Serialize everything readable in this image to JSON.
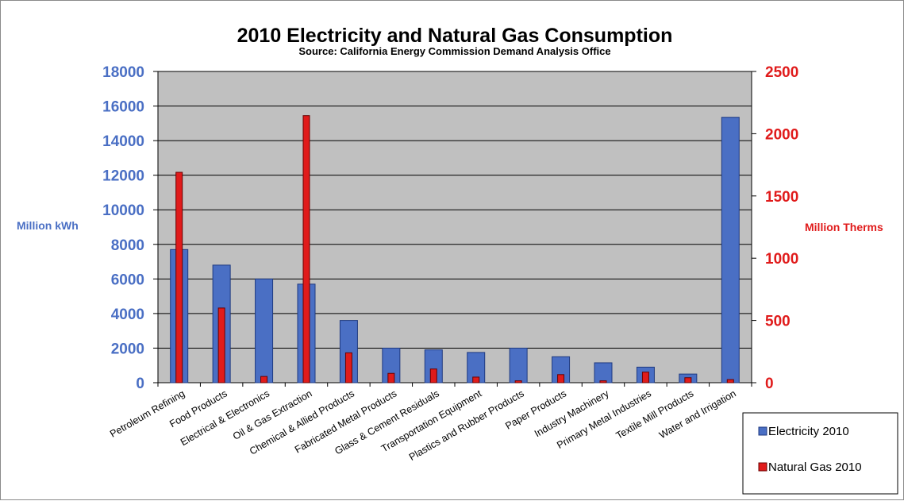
{
  "chart_data": {
    "type": "bar",
    "title": "2010 Electricity and Natural Gas Consumption",
    "subtitle": "Source: California Energy Commission Demand Analysis Office",
    "categories": [
      "Petroleum Refining",
      "Food Products",
      "Electrical & Electronics",
      "Oil & Gas Extraction",
      "Chemical & Allied Products",
      "Fabricated Metal Products",
      "Glass & Cement Residuals",
      "Transportation Equipment",
      "Plastics and Rubber Products",
      "Paper Products",
      "Industry Machinery",
      "Primary Metal Industries",
      "Textile Mill Products",
      "Water and Irrigation"
    ],
    "series": [
      {
        "name": "Electricity 2010",
        "axis": "left",
        "color": "#4a6fc4",
        "values": [
          7700,
          6800,
          6000,
          5700,
          3600,
          2000,
          1900,
          1750,
          2000,
          1500,
          1150,
          900,
          500,
          15350
        ]
      },
      {
        "name": "Natural Gas 2010",
        "axis": "right",
        "color": "#e01b1b",
        "values": [
          1690,
          600,
          50,
          2145,
          240,
          75,
          110,
          45,
          15,
          65,
          15,
          85,
          40,
          25
        ]
      }
    ],
    "ylabel_left": "Million kWh",
    "ylabel_right": "Million Therms",
    "ylim_left": [
      0,
      18000
    ],
    "ylim_right": [
      0,
      2500
    ],
    "yticks_left": [
      "0",
      "2000",
      "4000",
      "6000",
      "8000",
      "10000",
      "12000",
      "14000",
      "16000",
      "18000"
    ],
    "yticks_right": [
      "0",
      "500",
      "1000",
      "1500",
      "2000",
      "2500"
    ],
    "grid": true,
    "plot_background": "#c0c0c0",
    "legend_position": "bottom-right"
  }
}
